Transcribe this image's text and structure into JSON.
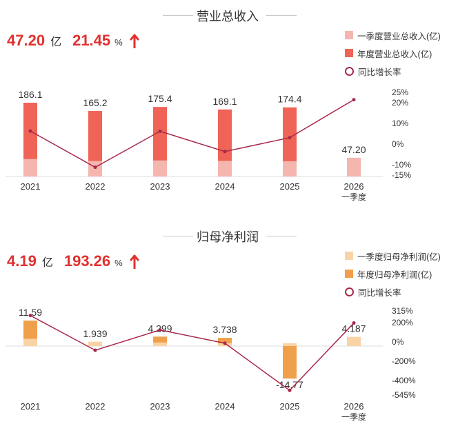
{
  "colors": {
    "accent_red": "#e0312f",
    "line": "#a8294a",
    "rev_q1": "#f4b6ae",
    "rev_year": "#ef6456",
    "np_q1": "#f9d3a6",
    "np_year": "#f0a04b"
  },
  "revenue": {
    "title": "营业总收入",
    "kpi_value": "47.20",
    "kpi_unit": "亿",
    "kpi_growth": "21.45",
    "kpi_pct": "%",
    "legend": {
      "q1": "一季度营业总收入(亿)",
      "year": "年度营业总收入(亿)",
      "yoy": "同比增长率"
    }
  },
  "net_profit": {
    "title": "归母净利润",
    "kpi_value": "4.19",
    "kpi_unit": "亿",
    "kpi_growth": "193.26",
    "kpi_pct": "%",
    "legend": {
      "q1": "一季度归母净利润(亿)",
      "year": "年度归母净利润(亿)",
      "yoy": "同比增长率"
    }
  },
  "chart_data": [
    {
      "type": "bar",
      "title": "营业总收入",
      "categories": [
        "2021",
        "2022",
        "2023",
        "2024",
        "2025",
        "2026"
      ],
      "category_sublabels": [
        "",
        "",
        "",
        "",
        "",
        "一季度"
      ],
      "series": [
        {
          "name": "一季度营业总收入(亿)",
          "values": [
            44.0,
            39.0,
            40.5,
            39.5,
            38.5,
            47.2
          ]
        },
        {
          "name": "年度营业总收入(亿)",
          "values": [
            186.1,
            165.2,
            175.4,
            169.1,
            174.4,
            null
          ]
        },
        {
          "name": "同比增长率",
          "type": "line",
          "axis": "right",
          "values": [
            6.3,
            -11.2,
            6.2,
            -3.6,
            3.1,
            21.45
          ]
        }
      ],
      "data_labels": [
        "186.1",
        "165.2",
        "175.4",
        "169.1",
        "174.4",
        "47.20"
      ],
      "left_ylim": [
        0,
        186.1
      ],
      "right_ylim": [
        -15,
        25
      ],
      "right_ticks": [
        "25%",
        "20%",
        "10%",
        "0%",
        "-10%",
        "-15%"
      ]
    },
    {
      "type": "bar",
      "title": "归母净利润",
      "categories": [
        "2021",
        "2022",
        "2023",
        "2024",
        "2025",
        "2026"
      ],
      "category_sublabels": [
        "",
        "",
        "",
        "",
        "",
        "一季度"
      ],
      "series": [
        {
          "name": "一季度归母净利润(亿)",
          "values": [
            3.3,
            1.939,
            1.6,
            1.3,
            1.3,
            4.19
          ]
        },
        {
          "name": "年度归母净利润(亿)",
          "values": [
            11.59,
            1.939,
            4.299,
            3.738,
            -14.77,
            null
          ]
        },
        {
          "name": "同比增长率",
          "type": "line",
          "axis": "right",
          "values": [
            270,
            -85,
            122,
            -13,
            -495,
            193.26
          ]
        }
      ],
      "data_labels": [
        "11.59",
        "1.939",
        "4.299",
        "3.738",
        "-14.77",
        "4.187"
      ],
      "right_ticks": [
        "315%",
        "200%",
        "0%",
        "-200%",
        "-400%",
        "-545%"
      ]
    }
  ]
}
